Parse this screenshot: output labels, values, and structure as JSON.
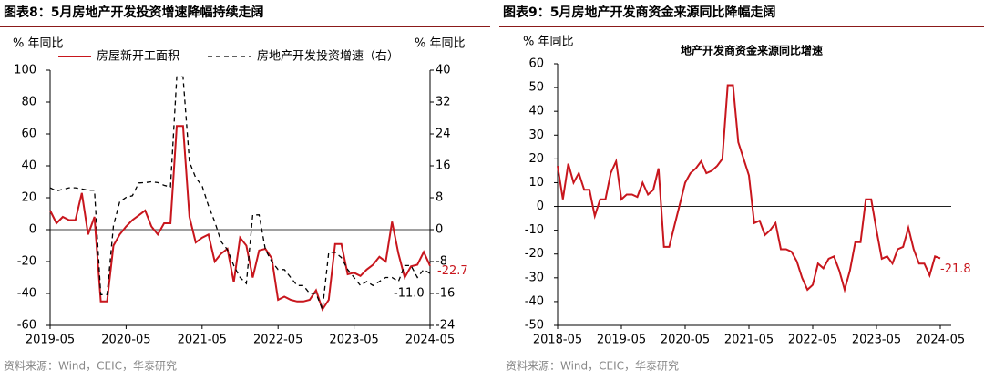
{
  "chart_data": [
    {
      "type": "line",
      "title": "图表8：5月房地产开发投资增速降幅持续走阔",
      "ylabel": "% 年同比",
      "y2label": "% 年同比",
      "source": "资料来源：Wind，CEIC，华泰研究",
      "categories": [
        "2019-05",
        null,
        null,
        null,
        null,
        null,
        null,
        null,
        null,
        null,
        null,
        null,
        "2020-05",
        null,
        null,
        null,
        null,
        null,
        null,
        null,
        null,
        null,
        null,
        null,
        "2021-05",
        null,
        null,
        null,
        null,
        null,
        null,
        null,
        null,
        null,
        null,
        null,
        "2022-05",
        null,
        null,
        null,
        null,
        null,
        null,
        null,
        null,
        null,
        null,
        null,
        "2023-05",
        null,
        null,
        null,
        null,
        null,
        null,
        null,
        null,
        null,
        null,
        null,
        "2024-05"
      ],
      "series": [
        {
          "name": "房屋新开工面积",
          "color": "#c8161d",
          "dash": false,
          "values": [
            12,
            4,
            8,
            6,
            6,
            23,
            -3,
            8,
            -45,
            -45,
            -10,
            -3,
            2,
            6,
            9,
            12,
            2,
            -3,
            4,
            4,
            65,
            65,
            8,
            -8,
            -5,
            -3,
            -20,
            -15,
            -12,
            -33,
            -5,
            -10,
            -30,
            -13,
            -12,
            -18,
            -44,
            -42,
            -44,
            -45,
            -45,
            -44,
            -38,
            -50,
            -44,
            -9,
            -9,
            -28,
            -27,
            -29,
            -25,
            -22,
            -17,
            -20,
            5,
            -15,
            -30,
            -23,
            -22,
            -14,
            -22.7
          ]
        },
        {
          "name": "房地产开发投资增速（右）",
          "color": "#000000",
          "dash": true,
          "axis": "y2",
          "values": [
            10.5,
            9.7,
            10.1,
            10.5,
            10.5,
            10.2,
            9.9,
            9.9,
            -16.3,
            -16.3,
            1.0,
            7.0,
            8.1,
            8.5,
            11.7,
            11.8,
            12.0,
            11.8,
            11.1,
            10.7,
            38.3,
            38.3,
            17.0,
            13.0,
            11.0,
            6.0,
            2.0,
            -3.0,
            -5.0,
            -9.0,
            -12.0,
            -13.5,
            3.7,
            3.7,
            -5.0,
            -8.0,
            -10.0,
            -10.0,
            -12.0,
            -14.0,
            -14.0,
            -16.0,
            -16.0,
            -20.0,
            -5.7,
            -5.7,
            -7.0,
            -10.0,
            -12.0,
            -14.0,
            -13.0,
            -14.0,
            -13.0,
            -12.0,
            -12.0,
            -13.0,
            -9.0,
            -9.0,
            -12.0,
            -10.0,
            -11.0
          ]
        }
      ],
      "annotations": [
        "-22.7",
        "-11.0"
      ],
      "ylim": [
        -60,
        100
      ],
      "yticks": [
        -60,
        -40,
        -20,
        0,
        20,
        40,
        60,
        80,
        100
      ],
      "y2lim": [
        -24,
        40
      ],
      "y2ticks": [
        -24,
        -16,
        -8,
        0,
        8,
        16,
        24,
        32,
        40
      ],
      "legend": "top"
    },
    {
      "type": "line",
      "title": "图表9：5月房地产开发商资金来源同比降幅走阔",
      "subtitle": "地产开发商资金来源同比增速",
      "ylabel": "% 年同比",
      "source": "资料来源：Wind，CEIC，华泰研究",
      "categories": [
        "2018-05",
        null,
        null,
        null,
        null,
        null,
        null,
        null,
        null,
        null,
        null,
        null,
        "2019-05",
        null,
        null,
        null,
        null,
        null,
        null,
        null,
        null,
        null,
        null,
        null,
        "2020-05",
        null,
        null,
        null,
        null,
        null,
        null,
        null,
        null,
        null,
        null,
        null,
        "2021-05",
        null,
        null,
        null,
        null,
        null,
        null,
        null,
        null,
        null,
        null,
        null,
        "2022-05",
        null,
        null,
        null,
        null,
        null,
        null,
        null,
        null,
        null,
        null,
        null,
        "2023-05",
        null,
        null,
        null,
        null,
        null,
        null,
        null,
        null,
        null,
        null,
        null,
        "2024-05"
      ],
      "series": [
        {
          "color": "#c8161d",
          "dash": false,
          "values": [
            17,
            3,
            18,
            10,
            14,
            7,
            7,
            -4,
            3,
            3,
            14,
            19,
            3,
            5,
            5,
            4,
            10,
            5,
            7,
            16,
            -17,
            -17,
            -8,
            1,
            10,
            14,
            16,
            19,
            14,
            15,
            17,
            20,
            51,
            51,
            27,
            20,
            13,
            -7,
            -6,
            -12,
            -10,
            -7,
            -18,
            -18,
            -19,
            -23,
            -30,
            -35,
            -33,
            -24,
            -26,
            -22,
            -21,
            -27,
            -35,
            -27,
            -15,
            -15,
            3,
            3,
            -10,
            -22,
            -21,
            -24,
            -18,
            -17,
            -9,
            -18,
            -24,
            -24,
            -29,
            -21,
            -21.8
          ]
        }
      ],
      "annotations": [
        "-21.8"
      ],
      "ylim": [
        -50,
        60
      ],
      "yticks": [
        -50,
        -40,
        -30,
        -20,
        -10,
        0,
        10,
        20,
        30,
        40,
        50,
        60
      ]
    }
  ]
}
